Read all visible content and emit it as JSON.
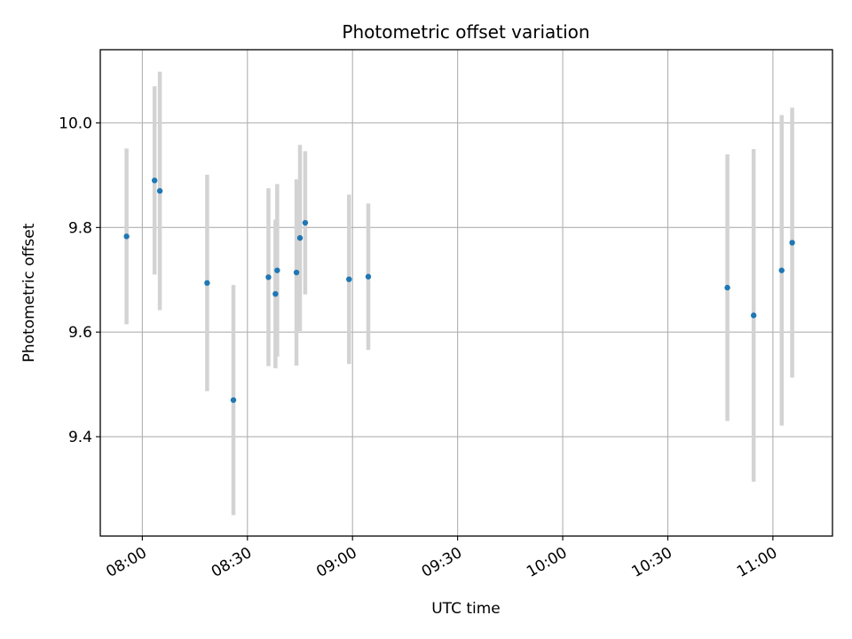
{
  "chart_data": {
    "type": "scatter",
    "title": "Photometric offset variation",
    "xlabel": "UTC time",
    "ylabel": "Photometric offset",
    "x_is_time": true,
    "xlim": [
      "07:48",
      "11:17"
    ],
    "ylim": [
      9.21,
      10.14
    ],
    "xticks": [
      "08:00",
      "08:30",
      "09:00",
      "09:30",
      "10:00",
      "10:30",
      "11:00"
    ],
    "yticks": [
      9.4,
      9.6,
      9.8,
      10.0
    ],
    "ytick_labels": [
      "9.4",
      "9.6",
      "9.8",
      "10.0"
    ],
    "grid": true,
    "errorbar_color": "#d3d3d3",
    "marker_color": "#1f77b4",
    "points": [
      {
        "x": "07:55:30",
        "y": 9.783,
        "yerr": 0.168
      },
      {
        "x": "08:03:30",
        "y": 9.89,
        "yerr": 0.18
      },
      {
        "x": "08:05:00",
        "y": 9.87,
        "yerr": 0.228
      },
      {
        "x": "08:18:30",
        "y": 9.694,
        "yerr": 0.207
      },
      {
        "x": "08:26:00",
        "y": 9.47,
        "yerr": 0.22
      },
      {
        "x": "08:36:00",
        "y": 9.705,
        "yerr": 0.17
      },
      {
        "x": "08:38:00",
        "y": 9.673,
        "yerr": 0.142
      },
      {
        "x": "08:38:30",
        "y": 9.718,
        "yerr": 0.165
      },
      {
        "x": "08:44:00",
        "y": 9.714,
        "yerr": 0.178
      },
      {
        "x": "08:45:00",
        "y": 9.78,
        "yerr": 0.178
      },
      {
        "x": "08:46:30",
        "y": 9.809,
        "yerr": 0.137
      },
      {
        "x": "08:59:00",
        "y": 9.701,
        "yerr": 0.162
      },
      {
        "x": "09:04:30",
        "y": 9.706,
        "yerr": 0.14
      },
      {
        "x": "10:47:00",
        "y": 9.685,
        "yerr": 0.255
      },
      {
        "x": "10:54:30",
        "y": 9.632,
        "yerr": 0.318
      },
      {
        "x": "11:02:30",
        "y": 9.718,
        "yerr": 0.297
      },
      {
        "x": "11:05:30",
        "y": 9.771,
        "yerr": 0.258
      }
    ]
  }
}
